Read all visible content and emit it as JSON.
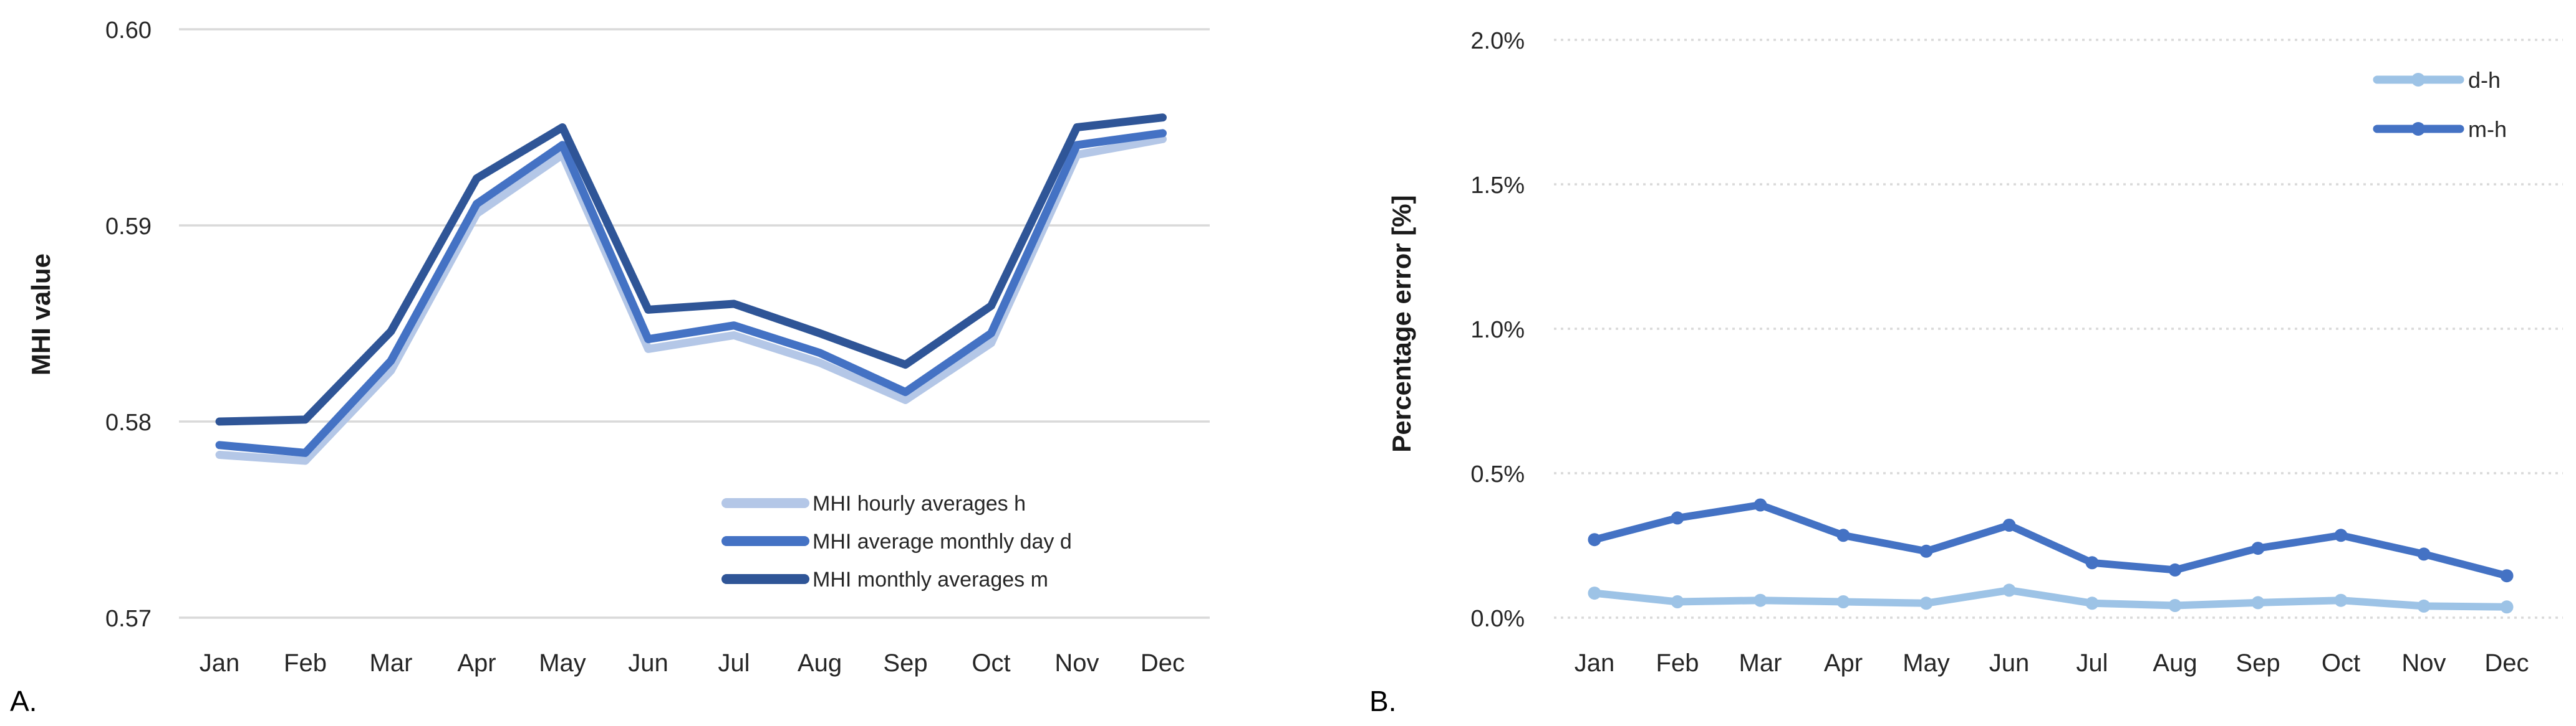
{
  "page": {
    "background": "#ffffff"
  },
  "panels": [
    {
      "letter": "A."
    },
    {
      "letter": "B."
    }
  ],
  "colors": {
    "gridline": "#D9D9D9",
    "mhi_hourly": "#B4C7E7",
    "mhi_daily": "#4472C4",
    "mhi_monthly": "#2F5597",
    "err_dh": "#9DC3E6",
    "err_mh": "#4472C4",
    "text": "#262626"
  },
  "chart_data": [
    {
      "type": "line",
      "title": "",
      "xlabel": "",
      "ylabel": "MHI value",
      "categories": [
        "Jan",
        "Feb",
        "Mar",
        "Apr",
        "May",
        "Jun",
        "Jul",
        "Aug",
        "Sep",
        "Oct",
        "Nov",
        "Dec"
      ],
      "ylim": [
        0.57,
        0.6
      ],
      "ytick_values": [
        0.6,
        0.59,
        0.58,
        0.57
      ],
      "ytick_labels": [
        "0.60",
        "0.59",
        "0.58",
        "0.57"
      ],
      "grid": "solid",
      "legend_position": "inside-bottom-right",
      "series": [
        {
          "name": "MHI hourly averages h",
          "color": "#B4C7E7",
          "marker": "none",
          "values": [
            0.5783,
            0.578,
            0.5826,
            0.5906,
            0.5936,
            0.5837,
            0.5844,
            0.583,
            0.5811,
            0.584,
            0.5936,
            0.5944
          ]
        },
        {
          "name": "MHI average monthly  day d",
          "color": "#4472C4",
          "marker": "none",
          "values": [
            0.5788,
            0.5784,
            0.5831,
            0.5911,
            0.5941,
            0.5842,
            0.5849,
            0.5835,
            0.5815,
            0.5845,
            0.5941,
            0.5947
          ]
        },
        {
          "name": "MHI monthly averages m",
          "color": "#2F5597",
          "marker": "none",
          "values": [
            0.58,
            0.5801,
            0.5846,
            0.5924,
            0.595,
            0.5857,
            0.586,
            0.5845,
            0.5829,
            0.5859,
            0.595,
            0.5955
          ]
        }
      ]
    },
    {
      "type": "line",
      "title": "",
      "xlabel": "",
      "ylabel": "Percentage error [%]",
      "categories": [
        "Jan",
        "Feb",
        "Mar",
        "Apr",
        "May",
        "Jun",
        "Jul",
        "Aug",
        "Sep",
        "Oct",
        "Nov",
        "Dec"
      ],
      "ylim": [
        0.0,
        2.0
      ],
      "ytick_values": [
        2.0,
        1.5,
        1.0,
        0.5,
        0.0
      ],
      "ytick_labels": [
        "2.0%",
        "1.5%",
        "1.0%",
        "0.5%",
        "0.0%"
      ],
      "grid": "dotted",
      "legend_position": "inside-top-right",
      "series": [
        {
          "name": "d-h",
          "color": "#9DC3E6",
          "marker": "circle",
          "values": [
            0.085,
            0.055,
            0.06,
            0.055,
            0.05,
            0.095,
            0.05,
            0.042,
            0.052,
            0.06,
            0.04,
            0.037
          ]
        },
        {
          "name": "m-h",
          "color": "#4472C4",
          "marker": "circle",
          "values": [
            0.27,
            0.345,
            0.39,
            0.285,
            0.23,
            0.32,
            0.19,
            0.165,
            0.24,
            0.285,
            0.22,
            0.145
          ]
        }
      ]
    }
  ]
}
